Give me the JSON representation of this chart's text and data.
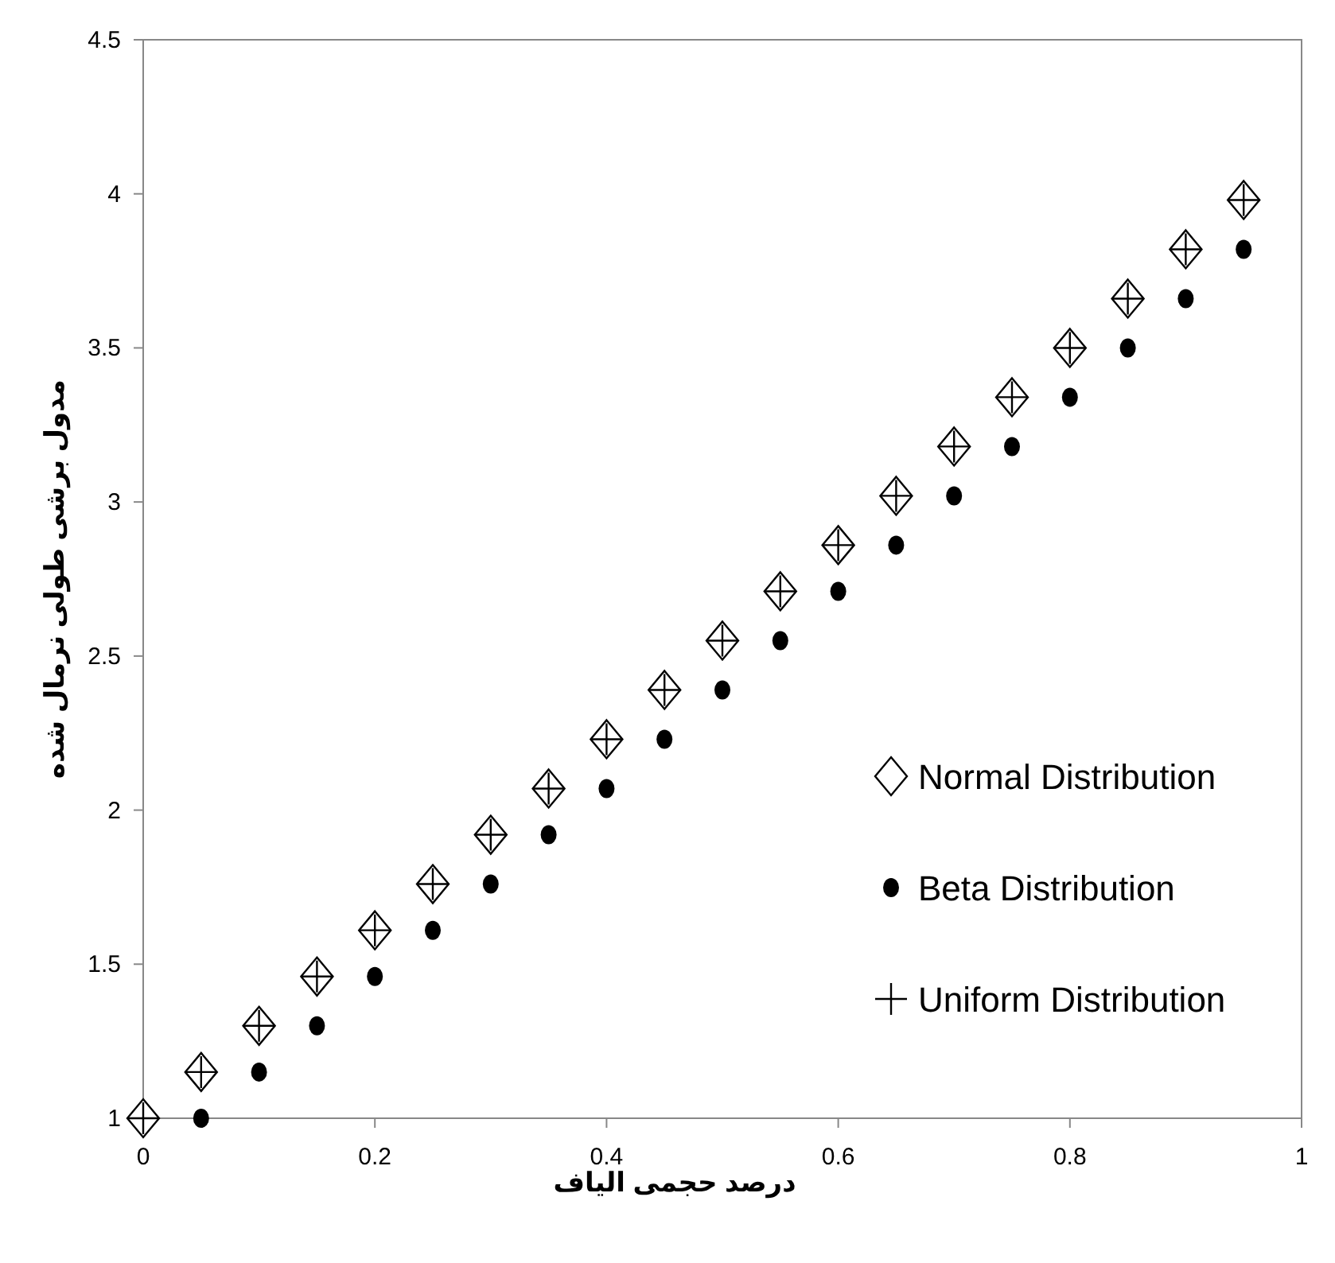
{
  "chart_data": {
    "type": "scatter",
    "xlabel": "درصد حجمی الیاف",
    "ylabel": "مدول برشی طولی نرمال شده",
    "xlim": [
      0,
      1
    ],
    "ylim": [
      1,
      4.5
    ],
    "xticks": [
      0,
      0.2,
      0.4,
      0.6,
      0.8,
      1
    ],
    "yticks": [
      1,
      1.5,
      2,
      2.5,
      3,
      3.5,
      4,
      4.5
    ],
    "grid": false,
    "legend": "right",
    "series": [
      {
        "name": "Normal Distribution",
        "color": "#000000",
        "marker": "diamond",
        "x": [
          0,
          0.05,
          0.1,
          0.15,
          0.2,
          0.25,
          0.3,
          0.35,
          0.4,
          0.45,
          0.5,
          0.55,
          0.6,
          0.65,
          0.7,
          0.75,
          0.8,
          0.85,
          0.9,
          0.95
        ],
        "values": [
          1,
          1.15,
          1.3,
          1.46,
          1.61,
          1.76,
          1.92,
          2.07,
          2.23,
          2.39,
          2.55,
          2.71,
          2.86,
          3.02,
          3.18,
          3.34,
          3.5,
          3.66,
          3.82,
          3.98
        ]
      },
      {
        "name": "Beta Distribution",
        "color": "#000000",
        "marker": "circle",
        "x": [
          0.05,
          0.1,
          0.15,
          0.2,
          0.25,
          0.3,
          0.35,
          0.4,
          0.45,
          0.5,
          0.55,
          0.6,
          0.65,
          0.7,
          0.75,
          0.8,
          0.85,
          0.9,
          0.95
        ],
        "values": [
          1,
          1.15,
          1.3,
          1.46,
          1.61,
          1.76,
          1.92,
          2.07,
          2.23,
          2.39,
          2.55,
          2.71,
          2.86,
          3.02,
          3.18,
          3.34,
          3.5,
          3.66,
          3.82
        ]
      },
      {
        "name": "Uniform Distribution",
        "color": "#000000",
        "marker": "cross",
        "x": [
          0,
          0.05,
          0.1,
          0.15,
          0.2,
          0.25,
          0.3,
          0.35,
          0.4,
          0.45,
          0.5,
          0.55,
          0.6,
          0.65,
          0.7,
          0.75,
          0.8,
          0.85,
          0.9,
          0.95
        ],
        "values": [
          1,
          1.15,
          1.3,
          1.46,
          1.61,
          1.76,
          1.92,
          2.07,
          2.23,
          2.39,
          2.55,
          2.71,
          2.86,
          3.02,
          3.18,
          3.34,
          3.5,
          3.66,
          3.82,
          3.98
        ]
      }
    ]
  }
}
